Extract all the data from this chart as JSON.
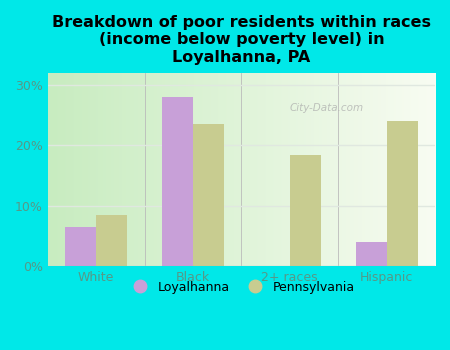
{
  "title": "Breakdown of poor residents within races\n(income below poverty level) in\nLoyalhanna, PA",
  "categories": [
    "White",
    "Black",
    "2+ races",
    "Hispanic"
  ],
  "loyalhanna_values": [
    6.5,
    28.0,
    0,
    4.0
  ],
  "pennsylvania_values": [
    8.5,
    23.5,
    18.5,
    24.0
  ],
  "loyalhanna_color": "#c8a0d8",
  "pennsylvania_color": "#c8cc90",
  "background_color": "#00e8e8",
  "plot_bg_left": "#c8ecc0",
  "plot_bg_right": "#f0f6f0",
  "ylim": [
    0,
    32
  ],
  "yticks": [
    0,
    10,
    20,
    30
  ],
  "ytick_labels": [
    "0%",
    "10%",
    "20%",
    "30%"
  ],
  "bar_width": 0.32,
  "title_fontsize": 11.5,
  "watermark": "City-Data.com",
  "grid_color": "#e0e8e0",
  "tick_color": "#559988"
}
